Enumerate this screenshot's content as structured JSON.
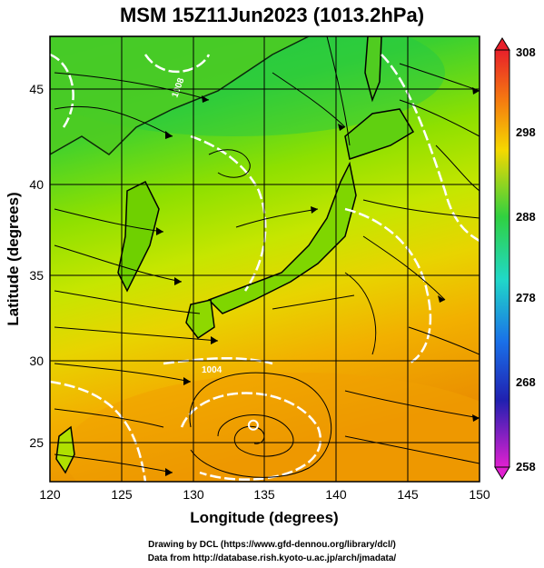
{
  "title": "MSM 15Z11Jun2023 (1013.2hPa)",
  "x_axis": {
    "label": "Longitude (degrees)",
    "ticks": [
      "120",
      "125",
      "130",
      "135",
      "140",
      "145",
      "150"
    ]
  },
  "y_axis": {
    "label": "Latitude  (degrees)",
    "ticks": [
      "25",
      "30",
      "35",
      "40",
      "45"
    ]
  },
  "colorbar": {
    "ticks": [
      "308",
      "298",
      "288",
      "278",
      "268",
      "258"
    ],
    "min": 258,
    "max": 308
  },
  "isobar_labels": [
    "1004",
    "1008"
  ],
  "credits": {
    "line1": "Drawing by DCL (https://www.gfd-dennou.org/library/dcl/)",
    "line2": "Data from http://database.rish.kyoto-u.ac.jp/arch/jmadata/"
  },
  "chart_data": {
    "type": "heatmap",
    "variable_range": [
      258,
      308
    ],
    "xlim": [
      120,
      150
    ],
    "ylim": [
      22.4,
      47.6
    ],
    "typhoon_center": {
      "lon": 134.2,
      "lat": 25.6
    },
    "colors": {
      "cold": "#22c43a",
      "mid": "#b8e600",
      "warm": "#f2a800",
      "hot": "#e88800",
      "isobar": "#ffffff",
      "streamline": "#000000"
    }
  }
}
